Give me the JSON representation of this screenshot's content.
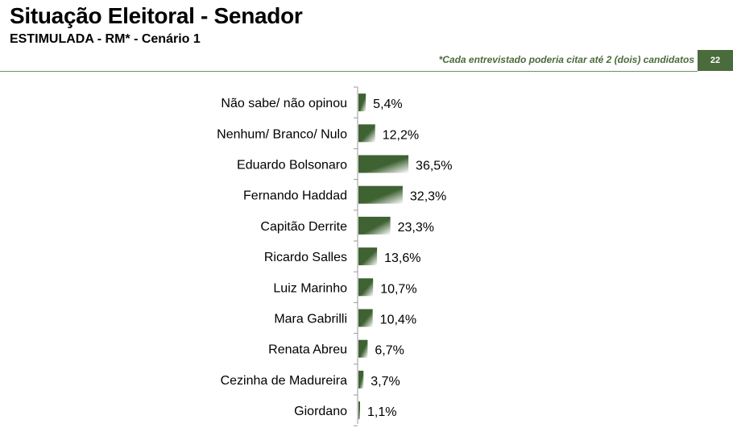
{
  "header": {
    "title": "Situação Eleitoral - Senador",
    "subtitle": "ESTIMULADA - RM* - Cenário 1",
    "note": "*Cada entrevistado poderia citar até 2 (dois) candidatos",
    "page_number": "22"
  },
  "colors": {
    "accent": "#4a6b3c",
    "bar_dark": "#3f6233",
    "bar_light": "#ffffff"
  },
  "chart_data": {
    "type": "bar",
    "orientation": "horizontal",
    "categories": [
      "Não sabe/ não opinou",
      "Nenhum/ Branco/ Nulo",
      "Eduardo Bolsonaro",
      "Fernando Haddad",
      "Capitão Derrite",
      "Ricardo Salles",
      "Luiz Marinho",
      "Mara Gabrilli",
      "Renata Abreu",
      "Cezinha de Madureira",
      "Giordano"
    ],
    "values": [
      5.4,
      12.2,
      36.5,
      32.3,
      23.3,
      13.6,
      10.7,
      10.4,
      6.7,
      3.7,
      1.1
    ],
    "value_labels": [
      "5,4%",
      "12,2%",
      "36,5%",
      "32,3%",
      "23,3%",
      "13,6%",
      "10,7%",
      "10,4%",
      "6,7%",
      "3,7%",
      "1,1%"
    ],
    "title": "Situação Eleitoral - Senador",
    "subtitle": "ESTIMULADA - RM* - Cenário 1",
    "xlabel": "",
    "ylabel": "",
    "xlim": [
      0,
      100
    ],
    "grid": false,
    "legend": "none"
  }
}
